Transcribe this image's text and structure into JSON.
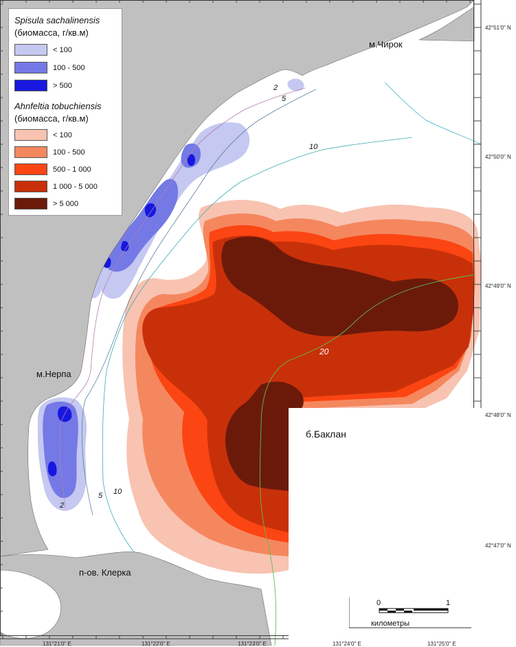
{
  "legend": {
    "spisula": {
      "title": "Spisula sachalinensis",
      "subtitle": "(биомасса, г/кв.м)",
      "classes": [
        {
          "label": "< 100",
          "color": "#c5c8f0"
        },
        {
          "label": "100 - 500",
          "color": "#7479e6"
        },
        {
          "label": "> 500",
          "color": "#1717e0"
        }
      ]
    },
    "ahnfeltia": {
      "title": "Ahnfeltia tobuchiensis",
      "subtitle": "(биомасса, г/кв.м)",
      "classes": [
        {
          "label": "< 100",
          "color": "#f8c3b1"
        },
        {
          "label": "100 - 500",
          "color": "#f5875f"
        },
        {
          "label": "500 - 1 000",
          "color": "#fb4512"
        },
        {
          "label": "1 000 - 5 000",
          "color": "#c8300a"
        },
        {
          "label": "> 5 000",
          "color": "#6b1a0a"
        }
      ]
    }
  },
  "places": {
    "chirok": "м.Чирок",
    "nerpa": "м.Нерпа",
    "klerka": "п-ов. Клерка",
    "baklan": "б.Баклан"
  },
  "contours": {
    "c2a": "2",
    "c5a": "5",
    "c10a": "10",
    "c20": "20",
    "c5b": "5",
    "c10b": "10",
    "c2b": "2"
  },
  "lat_labels": [
    "42°51'0\" N",
    "42°50'0\" N",
    "42°49'0\" N",
    "42°48'0\" N",
    "42°47'0\" N"
  ],
  "lon_labels": [
    "131°21'0\" E",
    "131°22'0\" E",
    "131°23'0\" E",
    "131°24'0\" E",
    "131°25'0\" E"
  ],
  "scale": {
    "zero": "0",
    "one": "1",
    "unit": "километры"
  },
  "colors": {
    "land": "#c0c0c0",
    "sea": "#ffffff"
  }
}
